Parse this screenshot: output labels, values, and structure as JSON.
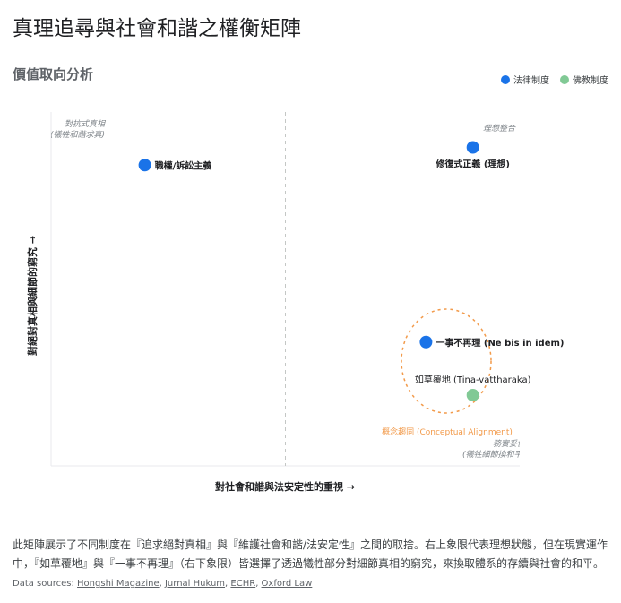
{
  "title": "真理追尋與社會和諧之權衡矩陣",
  "subtitle": "價值取向分析",
  "colors": {
    "legal": "#1a73e8",
    "buddhist": "#81c995",
    "highlight": "#f29a4a"
  },
  "chart_data": {
    "type": "scatter",
    "xlabel": "對社會和諧與法安定性的重視 →",
    "ylabel": "對絕對真相與細節的窮究 →",
    "xlim": [
      0,
      10
    ],
    "ylim": [
      0,
      10
    ],
    "grid": false,
    "quadrant_lines": [
      5,
      5
    ],
    "legend_position": "top-right",
    "series": [
      {
        "name": "法律制度",
        "color": "#1a73e8",
        "points": [
          {
            "label": "職權/訴訟主義",
            "x": 2,
            "y": 8.5
          },
          {
            "label": "修復式正義 (理想)",
            "x": 9,
            "y": 9
          },
          {
            "label": "一事不再理 (Ne bis in idem)",
            "x": 8,
            "y": 3.5
          }
        ]
      },
      {
        "name": "佛教制度",
        "color": "#81c995",
        "points": [
          {
            "label": "如草覆地 (Tina-vattharaka)",
            "x": 9,
            "y": 2
          }
        ]
      }
    ],
    "annotations": {
      "top_left": [
        "對抗式真相",
        "(犧牲和諧求真)"
      ],
      "top_right": "理想整合",
      "bottom_right": [
        "務實妥協",
        "(犧牲細節換和平)"
      ],
      "highlight": "概念趨同 (Conceptual Alignment)"
    }
  },
  "description": "此矩陣展示了不同制度在『追求絕對真相』與『維護社會和諧/法安定性』之間的取捨。右上象限代表理想狀態，但在現實運作中，『如草覆地』與『一事不再理』（右下象限）皆選擇了透過犧牲部分對細節真相的窮究，來換取體系的存續與社會的和平。",
  "sources_label": "Data sources:",
  "sources": [
    "Hongshi Magazine",
    "Jurnal Hukum",
    "ECHR",
    "Oxford Law"
  ]
}
